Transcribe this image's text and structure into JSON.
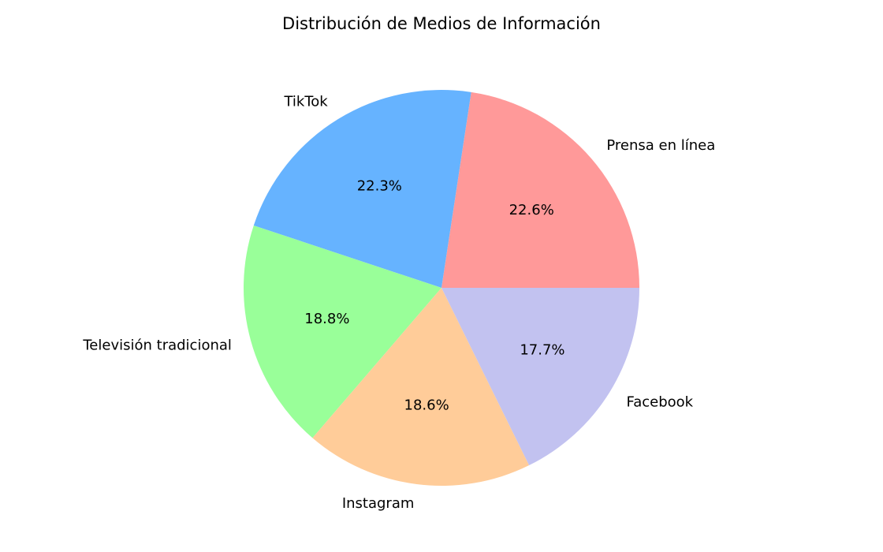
{
  "chart_data": {
    "type": "pie",
    "title": "Distribución de Medios de Información",
    "start_angle_deg": 0,
    "direction": "counterclockwise",
    "slices": [
      {
        "label": "Prensa en línea",
        "value": 22.6,
        "pct_label": "22.6%",
        "color": "#ff9999"
      },
      {
        "label": "TikTok",
        "value": 22.3,
        "pct_label": "22.3%",
        "color": "#66b3ff"
      },
      {
        "label": "Televisión tradicional",
        "value": 18.8,
        "pct_label": "18.8%",
        "color": "#99ff99"
      },
      {
        "label": "Instagram",
        "value": 18.6,
        "pct_label": "18.6%",
        "color": "#ffcc99"
      },
      {
        "label": "Facebook",
        "value": 17.7,
        "pct_label": "17.7%",
        "color": "#c2c2f0"
      }
    ]
  }
}
